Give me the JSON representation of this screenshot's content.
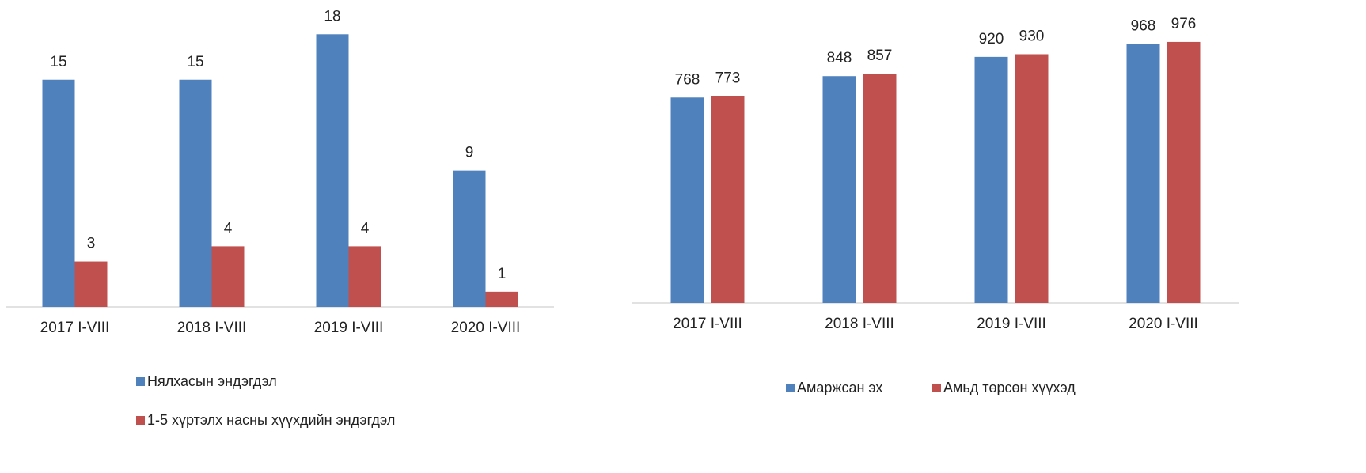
{
  "chart_data": [
    {
      "type": "bar",
      "categories": [
        "2017 I-VIII",
        "2018 I-VIII",
        "2019 I-VIII",
        "2020 I-VIII"
      ],
      "series": [
        {
          "name": "Нялхасын эндэгдэл",
          "color": "#4f81bd",
          "values": [
            15,
            15,
            18,
            9
          ]
        },
        {
          "name": "1-5 хүртэлх насны хүүхдийн эндэгдэл",
          "color": "#c0504d",
          "values": [
            3,
            4,
            4,
            1
          ]
        }
      ],
      "ylim": [
        0,
        20
      ],
      "legend": "bottom-vertical"
    },
    {
      "type": "bar",
      "categories": [
        "2017 I-VIII",
        "2018 I-VIII",
        "2019 I-VIII",
        "2020 I-VIII"
      ],
      "series": [
        {
          "name": "Амаржсан эх",
          "color": "#4f81bd",
          "values": [
            768,
            848,
            920,
            968
          ]
        },
        {
          "name": "Амьд төрсөн хүүхэд",
          "color": "#c0504d",
          "values": [
            773,
            857,
            930,
            976
          ]
        }
      ],
      "ylim": [
        0,
        1100
      ],
      "legend": "bottom-horizontal"
    }
  ]
}
